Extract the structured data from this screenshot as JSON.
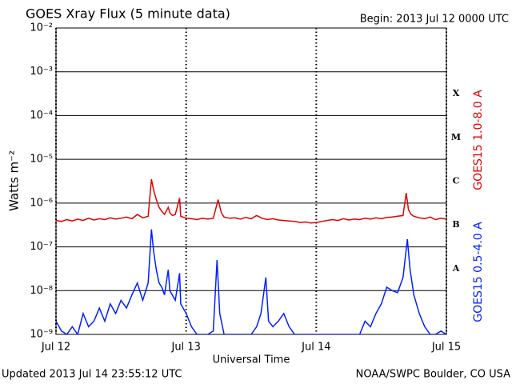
{
  "chart_data": {
    "type": "line",
    "title": "GOES Xray Flux (5 minute data)",
    "subtitle": "Begin:  2013 Jul 12 0000 UTC",
    "y_label": "Watts m⁻²",
    "x_label": "Universal Time",
    "footer_left": "Updated 2013 Jul 14 23:55:12 UTC",
    "footer_right": "NOAA/SWPC Boulder, CO USA",
    "log_y": true,
    "grid": true,
    "xlim": [
      0,
      72
    ],
    "xticks": [
      {
        "value": 0,
        "label": "Jul 12"
      },
      {
        "value": 24,
        "label": "Jul 13"
      },
      {
        "value": 48,
        "label": "Jul 14"
      },
      {
        "value": 72,
        "label": "Jul 15"
      }
    ],
    "ylim": [
      1e-09,
      0.01
    ],
    "yticks": [
      {
        "value": 1e-09,
        "label": "10⁻⁹"
      },
      {
        "value": 1e-08,
        "label": "10⁻⁸"
      },
      {
        "value": 1e-07,
        "label": "10⁻⁷"
      },
      {
        "value": 1e-06,
        "label": "10⁻⁶"
      },
      {
        "value": 1e-05,
        "label": "10⁻⁵"
      },
      {
        "value": 0.0001,
        "label": "10⁻⁴"
      },
      {
        "value": 0.001,
        "label": "10⁻³"
      },
      {
        "value": 0.01,
        "label": "10⁻²"
      }
    ],
    "class_labels": [
      "A",
      "B",
      "C",
      "M",
      "X"
    ],
    "series": [
      {
        "name": "GOES15 1.0-8.0 A",
        "color": "#e00000",
        "x": [
          0,
          1,
          2,
          3,
          4,
          5,
          6,
          7,
          8,
          9,
          10,
          11,
          12,
          13,
          14,
          15,
          16,
          17,
          17.6,
          18,
          18.5,
          19,
          19.5,
          20,
          20.7,
          21,
          21.5,
          22,
          22.8,
          23,
          24,
          25,
          26,
          27,
          28,
          29,
          29.9,
          30.5,
          31,
          32,
          33,
          34,
          35,
          36,
          37,
          38,
          39,
          40,
          41,
          42,
          43,
          44,
          45,
          46,
          47,
          48,
          49,
          50,
          51,
          52,
          53,
          54,
          55,
          56,
          57,
          58,
          59,
          60,
          61,
          62,
          63,
          64,
          64.6,
          65,
          65.5,
          66,
          67,
          68,
          69,
          70,
          71,
          72
        ],
        "values": [
          4e-07,
          3.8e-07,
          4.2e-07,
          3.9e-07,
          4.3e-07,
          4e-07,
          4.5e-07,
          4.1e-07,
          4.4e-07,
          4.2e-07,
          4.6e-07,
          4.3e-07,
          4.5e-07,
          4.8e-07,
          4.4e-07,
          5.5e-07,
          4.6e-07,
          5e-07,
          3.5e-06,
          2e-06,
          1.2e-06,
          8e-07,
          6.5e-07,
          5.5e-07,
          8e-07,
          6e-07,
          5.2e-07,
          5.5e-07,
          1.3e-06,
          5e-07,
          4.5e-07,
          4.4e-07,
          4.2e-07,
          4.5e-07,
          4.3e-07,
          4.5e-07,
          1.2e-06,
          6e-07,
          4.8e-07,
          4.5e-07,
          4.6e-07,
          4.3e-07,
          4.7e-07,
          4.4e-07,
          5.2e-07,
          4.5e-07,
          4.2e-07,
          4.4e-07,
          4.1e-07,
          4e-07,
          3.9e-07,
          3.8e-07,
          3.6e-07,
          3.7e-07,
          3.5e-07,
          3.6e-07,
          3.8e-07,
          4e-07,
          4.2e-07,
          4e-07,
          4.4e-07,
          4.1e-07,
          4.3e-07,
          4.2e-07,
          4.5e-07,
          4.3e-07,
          4.6e-07,
          4.4e-07,
          4.7e-07,
          4.8e-07,
          5e-07,
          5.2e-07,
          1.7e-06,
          7e-07,
          5.5e-07,
          5e-07,
          4.6e-07,
          4.4e-07,
          4.8e-07,
          4.2e-07,
          4.5e-07,
          4.3e-07
        ]
      },
      {
        "name": "GOES15 0.5-4.0 A",
        "color": "#0020ff",
        "x": [
          0,
          1,
          2,
          3,
          4,
          5,
          6,
          7,
          8,
          9,
          10,
          11,
          12,
          13,
          14,
          15,
          16,
          17,
          17.6,
          18,
          18.5,
          19,
          19.5,
          20,
          20.7,
          21,
          22,
          22.8,
          23,
          24,
          25,
          26,
          27,
          28,
          29,
          29.7,
          30.2,
          31,
          32,
          33,
          34,
          35,
          36,
          37,
          37.8,
          38.7,
          39.2,
          40,
          41,
          42,
          43,
          44,
          45,
          46,
          47,
          48,
          49,
          50,
          51,
          52,
          53,
          54,
          55,
          56,
          57,
          58,
          59,
          60,
          61,
          62,
          63,
          64,
          64.8,
          65.3,
          66,
          67,
          68,
          69,
          70,
          71,
          72
        ],
        "values": [
          2e-09,
          1.2e-09,
          1e-09,
          1.5e-09,
          1e-09,
          3e-09,
          1.5e-09,
          2e-09,
          4e-09,
          2e-09,
          5e-09,
          3e-09,
          6e-09,
          4e-09,
          8e-09,
          1.5e-08,
          6e-09,
          1.5e-08,
          2.5e-07,
          8e-08,
          3e-08,
          1.5e-08,
          1.2e-08,
          8e-09,
          3e-08,
          1e-08,
          6e-09,
          2.5e-08,
          5e-09,
          3e-09,
          1.5e-09,
          1e-09,
          1e-09,
          1e-09,
          1.2e-09,
          5e-08,
          3e-09,
          1e-09,
          1e-09,
          1e-09,
          1e-09,
          1e-09,
          1e-09,
          1.5e-09,
          3e-09,
          2e-08,
          2e-09,
          1.5e-09,
          2e-09,
          3e-09,
          1.5e-09,
          1e-09,
          1e-09,
          1e-09,
          1e-09,
          1e-09,
          1e-09,
          1e-09,
          1e-09,
          1e-09,
          1e-09,
          1e-09,
          1e-09,
          1e-09,
          2e-09,
          1.5e-09,
          3e-09,
          5e-09,
          1.2e-08,
          1e-08,
          9e-09,
          2e-08,
          1.5e-07,
          3e-08,
          8e-09,
          3e-09,
          1.5e-09,
          1e-09,
          1e-09,
          1.2e-09,
          1e-09
        ]
      }
    ]
  }
}
